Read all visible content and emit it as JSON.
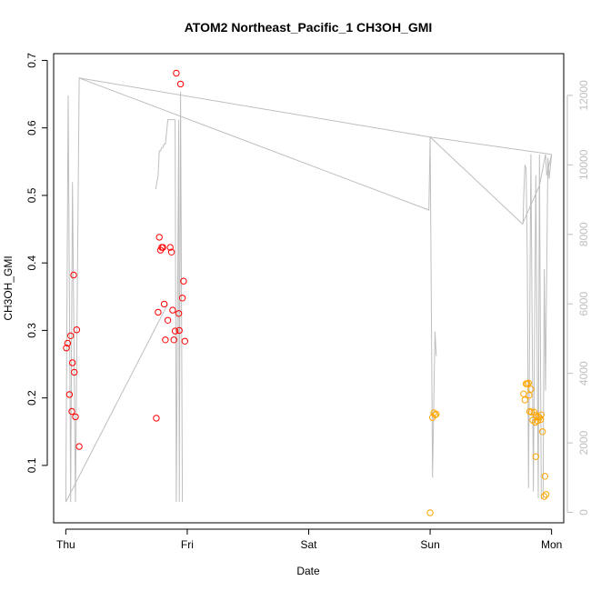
{
  "chart_data": {
    "type": "scatter",
    "title": "ATOM2 Northeast_Pacific_1 CH3OH_GMI",
    "xlabel": "Date",
    "ylabel": "CH3OH_GMI",
    "x_categories": [
      "Thu",
      "Fri",
      "Sat",
      "Sun",
      "Mon"
    ],
    "x_range_days": [
      -0.1,
      4.1
    ],
    "ylim": [
      0.015,
      0.71
    ],
    "y_ticks": [
      0.1,
      0.2,
      0.3,
      0.4,
      0.5,
      0.6,
      0.7
    ],
    "y_tick_labels": [
      "0.1",
      "0.2",
      "0.3",
      "0.4",
      "0.5",
      "0.6",
      "0.7"
    ],
    "y2lim": [
      -300,
      13200
    ],
    "y2_ticks": [
      0,
      2000,
      4000,
      6000,
      8000,
      10000,
      12000
    ],
    "y2_tick_labels": [
      "0",
      "2000",
      "4000",
      "6000",
      "8000",
      "10000",
      "12000"
    ],
    "colors": {
      "series_1": "#ff0000",
      "series_2": "#ffa500",
      "altitude_line": "#bebebe",
      "axis": "#000000"
    },
    "series": [
      {
        "color": "#ff0000",
        "points": [
          [
            0.005,
            0.274
          ],
          [
            0.015,
            0.281
          ],
          [
            0.03,
            0.205
          ],
          [
            0.04,
            0.292
          ],
          [
            0.05,
            0.18
          ],
          [
            0.055,
            0.252
          ],
          [
            0.065,
            0.382
          ],
          [
            0.07,
            0.238
          ],
          [
            0.08,
            0.172
          ],
          [
            0.09,
            0.301
          ],
          [
            0.11,
            0.128
          ],
          [
            0.745,
            0.17
          ],
          [
            0.76,
            0.327
          ],
          [
            0.77,
            0.438
          ],
          [
            0.78,
            0.419
          ],
          [
            0.79,
            0.423
          ],
          [
            0.8,
            0.423
          ],
          [
            0.81,
            0.339
          ],
          [
            0.82,
            0.286
          ],
          [
            0.84,
            0.315
          ],
          [
            0.86,
            0.423
          ],
          [
            0.87,
            0.416
          ],
          [
            0.88,
            0.33
          ],
          [
            0.89,
            0.286
          ],
          [
            0.9,
            0.299
          ],
          [
            0.91,
            0.681
          ],
          [
            0.93,
            0.325
          ],
          [
            0.935,
            0.3
          ],
          [
            0.945,
            0.665
          ],
          [
            0.96,
            0.348
          ],
          [
            0.97,
            0.373
          ],
          [
            0.98,
            0.284
          ]
        ]
      },
      {
        "color": "#ffa500",
        "points": [
          [
            3.0,
            0.03
          ],
          [
            3.02,
            0.171
          ],
          [
            3.03,
            0.178
          ],
          [
            3.04,
            0.175
          ],
          [
            3.05,
            0.176
          ],
          [
            3.77,
            0.206
          ],
          [
            3.78,
            0.197
          ],
          [
            3.79,
            0.221
          ],
          [
            3.8,
            0.221
          ],
          [
            3.81,
            0.222
          ],
          [
            3.815,
            0.204
          ],
          [
            3.82,
            0.18
          ],
          [
            3.83,
            0.213
          ],
          [
            3.835,
            0.179
          ],
          [
            3.845,
            0.167
          ],
          [
            3.855,
            0.179
          ],
          [
            3.865,
            0.164
          ],
          [
            3.87,
            0.113
          ],
          [
            3.875,
            0.174
          ],
          [
            3.885,
            0.166
          ],
          [
            3.89,
            0.172
          ],
          [
            3.9,
            0.171
          ],
          [
            3.91,
            0.168
          ],
          [
            3.915,
            0.175
          ],
          [
            3.925,
            0.15
          ],
          [
            3.94,
            0.054
          ],
          [
            3.945,
            0.084
          ],
          [
            3.955,
            0.057
          ]
        ]
      }
    ],
    "altitude_line_y2": [
      [
        0.0,
        300
      ],
      [
        0.02,
        12000
      ],
      [
        0.04,
        300
      ],
      [
        0.055,
        9500
      ],
      [
        0.08,
        300
      ],
      [
        0.11,
        12500
      ],
      [
        2.99,
        8700
      ],
      [
        3.0,
        10800
      ],
      [
        3.76,
        8300
      ],
      [
        3.9,
        9400
      ],
      [
        3.95,
        10300
      ],
      [
        3.96,
        9700
      ],
      [
        4.0,
        10300
      ],
      [
        3.98,
        9600
      ],
      [
        3.97,
        10200
      ],
      [
        3.955,
        5200
      ],
      [
        3.95,
        3500
      ],
      [
        3.94,
        7000
      ],
      [
        3.93,
        400
      ],
      [
        3.915,
        400
      ],
      [
        3.9,
        10300
      ],
      [
        3.89,
        400
      ],
      [
        3.87,
        9700
      ],
      [
        3.85,
        600
      ],
      [
        3.83,
        10300
      ],
      [
        3.81,
        700
      ],
      [
        3.8,
        7400
      ],
      [
        3.79,
        9900
      ],
      [
        3.78,
        10000
      ],
      [
        3.77,
        9000
      ],
      [
        3.765,
        8300
      ]
    ],
    "altitude_segments_y2": [
      [
        [
          0.11,
          12500
        ],
        [
          3.0,
          10800
        ]
      ],
      [
        [
          0.0,
          300
        ],
        [
          0.84,
          6000
        ]
      ],
      [
        [
          0.74,
          9300
        ],
        [
          0.76,
          9700
        ],
        [
          0.77,
          10400
        ],
        [
          0.78,
          10400
        ],
        [
          0.79,
          10500
        ],
        [
          0.8,
          10500
        ],
        [
          0.81,
          10600
        ],
        [
          0.82,
          10600
        ],
        [
          0.84,
          11300
        ],
        [
          0.9,
          11300
        ]
      ],
      [
        [
          0.9,
          11300
        ],
        [
          0.91,
          300
        ],
        [
          0.93,
          11300
        ],
        [
          0.935,
          300
        ],
        [
          0.945,
          12100
        ],
        [
          0.96,
          300
        ]
      ],
      [
        [
          3.0,
          10800
        ],
        [
          3.02,
          1000
        ],
        [
          3.04,
          5200
        ],
        [
          3.05,
          4500
        ]
      ],
      [
        [
          3.0,
          10800
        ],
        [
          4.0,
          10300
        ]
      ]
    ]
  }
}
